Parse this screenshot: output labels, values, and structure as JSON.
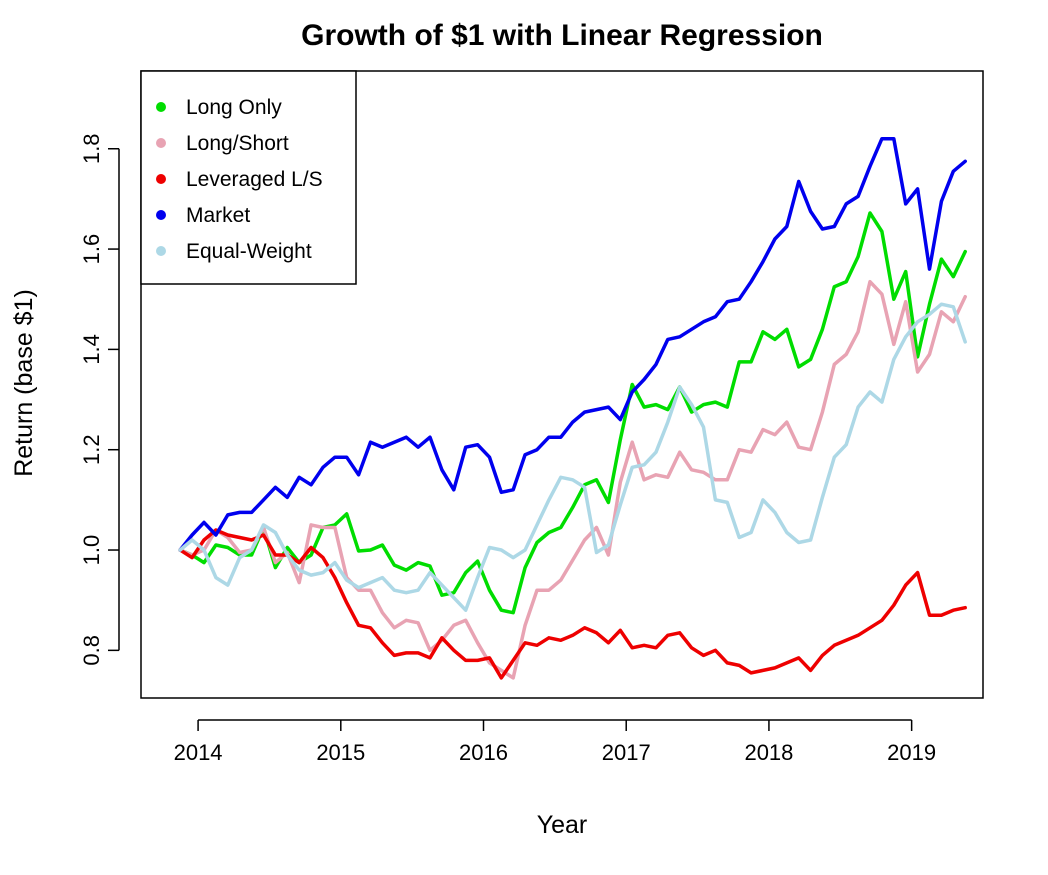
{
  "chart_data": {
    "type": "line",
    "title": "Growth of $1 with Linear Regression",
    "xlabel": "Year",
    "ylabel": "Return (base $1)",
    "xlim": [
      2013.6,
      2019.5
    ],
    "ylim": [
      0.705,
      1.955
    ],
    "x_ticks": [
      2014,
      2015,
      2016,
      2017,
      2018,
      2019
    ],
    "x_tick_labels": [
      "2014",
      "2015",
      "2016",
      "2017",
      "2018",
      "2019"
    ],
    "y_ticks": [
      0.8,
      1.0,
      1.2,
      1.4,
      1.6,
      1.8
    ],
    "y_tick_labels": [
      "0.8",
      "1.0",
      "1.2",
      "1.4",
      "1.6",
      "1.8"
    ],
    "grid": false,
    "legend_position": "top-left",
    "x_start": 2013.875,
    "x_step": 0.0833333,
    "series": [
      {
        "name": "Long Only",
        "color": "#00dd00",
        "values": [
          1.0,
          0.99,
          0.975,
          1.01,
          1.005,
          0.99,
          0.99,
          1.045,
          0.965,
          1.005,
          0.975,
          0.99,
          1.045,
          1.05,
          1.072,
          0.998,
          1.0,
          1.01,
          0.97,
          0.96,
          0.975,
          0.968,
          0.91,
          0.915,
          0.955,
          0.978,
          0.92,
          0.88,
          0.875,
          0.965,
          1.015,
          1.035,
          1.045,
          1.085,
          1.13,
          1.14,
          1.095,
          1.22,
          1.33,
          1.285,
          1.29,
          1.28,
          1.325,
          1.275,
          1.29,
          1.295,
          1.285,
          1.375,
          1.375,
          1.435,
          1.42,
          1.44,
          1.365,
          1.38,
          1.44,
          1.525,
          1.535,
          1.585,
          1.672,
          1.635,
          1.5,
          1.555,
          1.385,
          1.49,
          1.58,
          1.545,
          1.595
        ]
      },
      {
        "name": "Long/Short",
        "color": "#e8a3b3",
        "values": [
          1.0,
          0.99,
          1.0,
          1.04,
          1.025,
          0.995,
          1.0,
          1.045,
          0.975,
          0.995,
          0.935,
          1.05,
          1.045,
          1.045,
          0.945,
          0.92,
          0.92,
          0.875,
          0.845,
          0.86,
          0.855,
          0.8,
          0.82,
          0.85,
          0.86,
          0.815,
          0.775,
          0.76,
          0.745,
          0.85,
          0.92,
          0.92,
          0.94,
          0.98,
          1.02,
          1.045,
          0.99,
          1.135,
          1.215,
          1.14,
          1.15,
          1.145,
          1.195,
          1.16,
          1.155,
          1.14,
          1.14,
          1.2,
          1.195,
          1.24,
          1.23,
          1.255,
          1.205,
          1.2,
          1.275,
          1.37,
          1.39,
          1.435,
          1.535,
          1.51,
          1.41,
          1.495,
          1.355,
          1.39,
          1.475,
          1.455,
          1.505
        ]
      },
      {
        "name": "Leveraged L/S",
        "color": "#ee0000",
        "values": [
          1.0,
          0.985,
          1.02,
          1.04,
          1.03,
          1.025,
          1.02,
          1.03,
          0.99,
          0.99,
          0.975,
          1.005,
          0.985,
          0.945,
          0.895,
          0.85,
          0.845,
          0.815,
          0.79,
          0.795,
          0.795,
          0.785,
          0.825,
          0.8,
          0.78,
          0.78,
          0.785,
          0.745,
          0.78,
          0.815,
          0.81,
          0.825,
          0.82,
          0.83,
          0.845,
          0.835,
          0.815,
          0.84,
          0.805,
          0.81,
          0.805,
          0.83,
          0.835,
          0.805,
          0.79,
          0.8,
          0.775,
          0.77,
          0.755,
          0.76,
          0.765,
          0.775,
          0.785,
          0.76,
          0.79,
          0.81,
          0.82,
          0.83,
          0.845,
          0.86,
          0.89,
          0.93,
          0.955,
          0.87,
          0.87,
          0.88,
          0.885
        ]
      },
      {
        "name": "Market",
        "color": "#0000ee",
        "values": [
          1.0,
          1.03,
          1.055,
          1.03,
          1.07,
          1.075,
          1.075,
          1.1,
          1.125,
          1.105,
          1.145,
          1.13,
          1.165,
          1.185,
          1.185,
          1.15,
          1.215,
          1.205,
          1.215,
          1.225,
          1.205,
          1.225,
          1.16,
          1.12,
          1.205,
          1.21,
          1.185,
          1.115,
          1.12,
          1.19,
          1.2,
          1.225,
          1.225,
          1.255,
          1.275,
          1.28,
          1.285,
          1.26,
          1.315,
          1.34,
          1.37,
          1.42,
          1.425,
          1.44,
          1.455,
          1.465,
          1.495,
          1.5,
          1.535,
          1.575,
          1.62,
          1.645,
          1.735,
          1.675,
          1.64,
          1.645,
          1.69,
          1.705,
          1.765,
          1.82,
          1.82,
          1.69,
          1.72,
          1.56,
          1.695,
          1.755,
          1.775
        ]
      },
      {
        "name": "Equal-Weight",
        "color": "#add8e6",
        "values": [
          1.0,
          1.02,
          1.0,
          0.945,
          0.93,
          0.985,
          1.0,
          1.05,
          1.035,
          0.99,
          0.96,
          0.95,
          0.955,
          0.975,
          0.94,
          0.925,
          0.935,
          0.945,
          0.92,
          0.915,
          0.92,
          0.955,
          0.93,
          0.905,
          0.88,
          0.945,
          1.005,
          1.0,
          0.985,
          1.0,
          1.05,
          1.1,
          1.145,
          1.14,
          1.125,
          0.995,
          1.01,
          1.09,
          1.165,
          1.17,
          1.195,
          1.255,
          1.325,
          1.29,
          1.245,
          1.1,
          1.095,
          1.025,
          1.035,
          1.1,
          1.075,
          1.035,
          1.015,
          1.02,
          1.105,
          1.185,
          1.21,
          1.285,
          1.315,
          1.295,
          1.38,
          1.425,
          1.455,
          1.47,
          1.49,
          1.485,
          1.415
        ]
      }
    ]
  }
}
